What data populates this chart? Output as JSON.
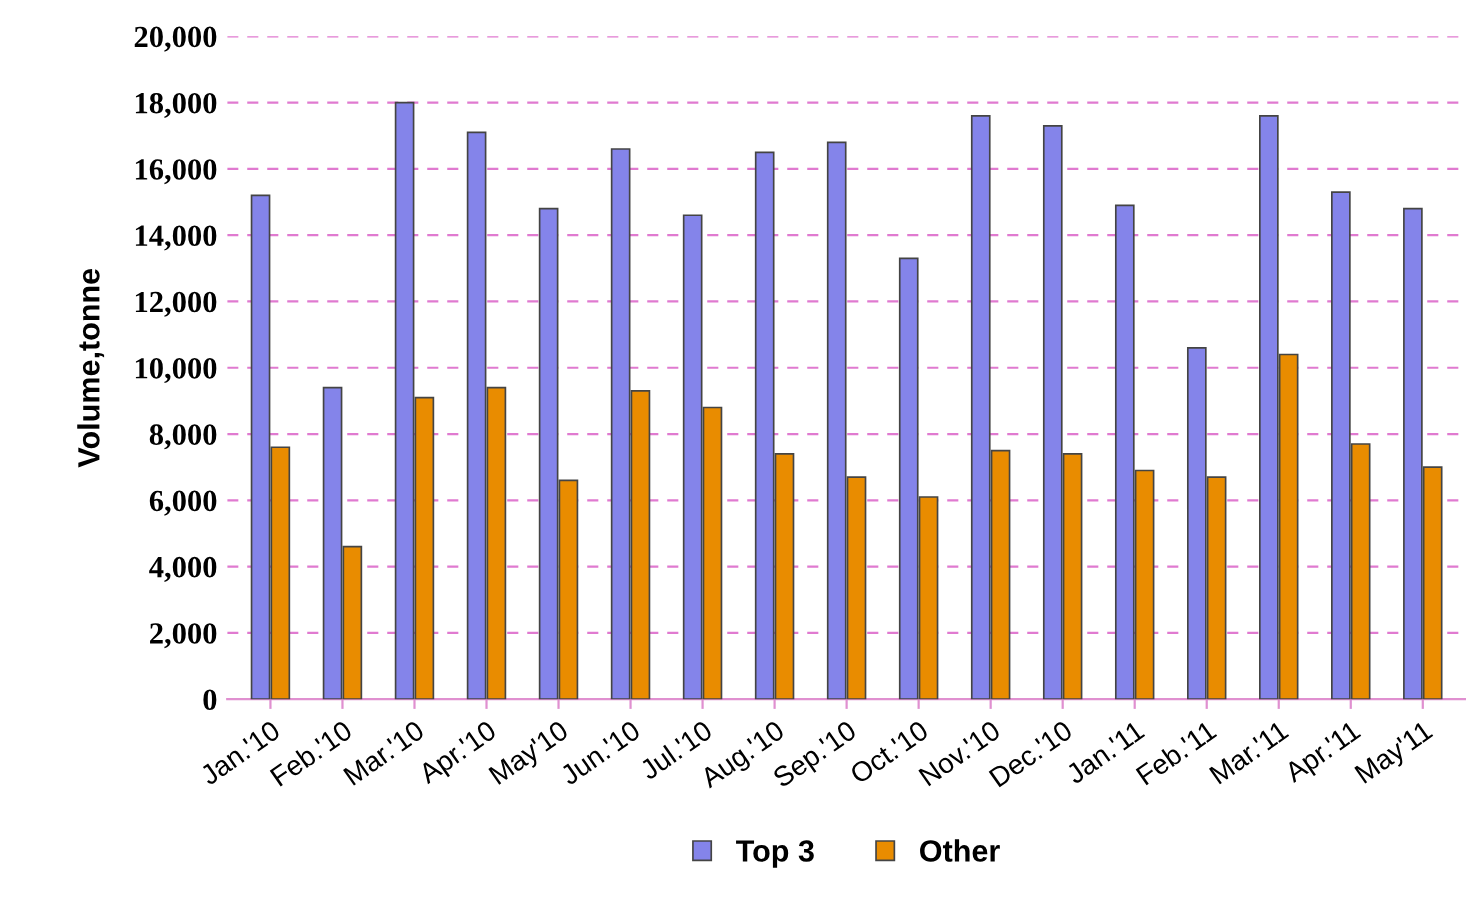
{
  "chart_data": {
    "type": "bar",
    "ylabel": "Volume,tonne",
    "categories": [
      "Jan.'10",
      "Feb.'10",
      "Mar.'10",
      "Apr.'10",
      "May'10",
      "Jun.'10",
      "Jul.'10",
      "Aug.'10",
      "Sep.'10",
      "Oct.'10",
      "Nov.'10",
      "Dec.'10",
      "Jan.'11",
      "Feb.'11",
      "Mar.'11",
      "Apr.'11",
      "May'11"
    ],
    "series": [
      {
        "name": "Top 3",
        "color": "#8484ea",
        "values": [
          15200,
          9400,
          18000,
          17100,
          14800,
          16600,
          14600,
          16500,
          16800,
          13300,
          17600,
          17300,
          14900,
          10600,
          17600,
          15300,
          14800
        ]
      },
      {
        "name": "Other",
        "color": "#e98c00",
        "values": [
          7600,
          4600,
          9100,
          9400,
          6600,
          9300,
          8800,
          7400,
          6700,
          6100,
          7500,
          7400,
          6900,
          6700,
          10400,
          7700,
          7000
        ]
      }
    ],
    "ylim": [
      0,
      20000
    ],
    "yticks": [
      {
        "value": 0,
        "label": "0"
      },
      {
        "value": 2000,
        "label": "2,000"
      },
      {
        "value": 4000,
        "label": "4,000"
      },
      {
        "value": 6000,
        "label": "6,000"
      },
      {
        "value": 8000,
        "label": "8,000"
      },
      {
        "value": 10000,
        "label": "10,000"
      },
      {
        "value": 12000,
        "label": "12,000"
      },
      {
        "value": 14000,
        "label": "14,000"
      },
      {
        "value": 16000,
        "label": "16,000"
      },
      {
        "value": 18000,
        "label": "18,000"
      },
      {
        "value": 20000,
        "label": "20,000"
      }
    ],
    "grid": "y",
    "legend": "bottom"
  }
}
